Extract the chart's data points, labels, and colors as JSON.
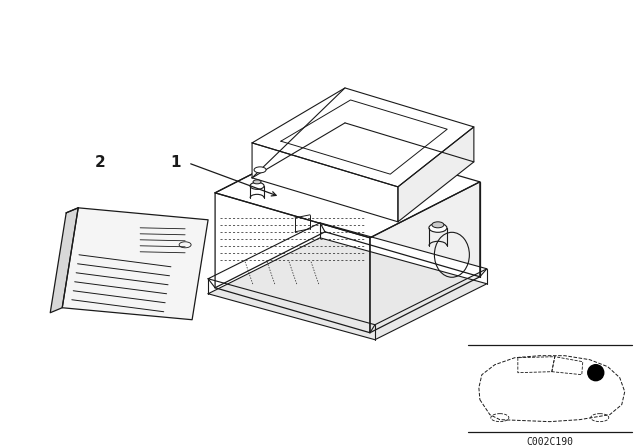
{
  "bg_color": "#ffffff",
  "line_color": "#1a1a1a",
  "label_1": "1",
  "label_2": "2",
  "ref_code": "C002C190",
  "fig_width": 6.4,
  "fig_height": 4.48,
  "dpi": 100
}
